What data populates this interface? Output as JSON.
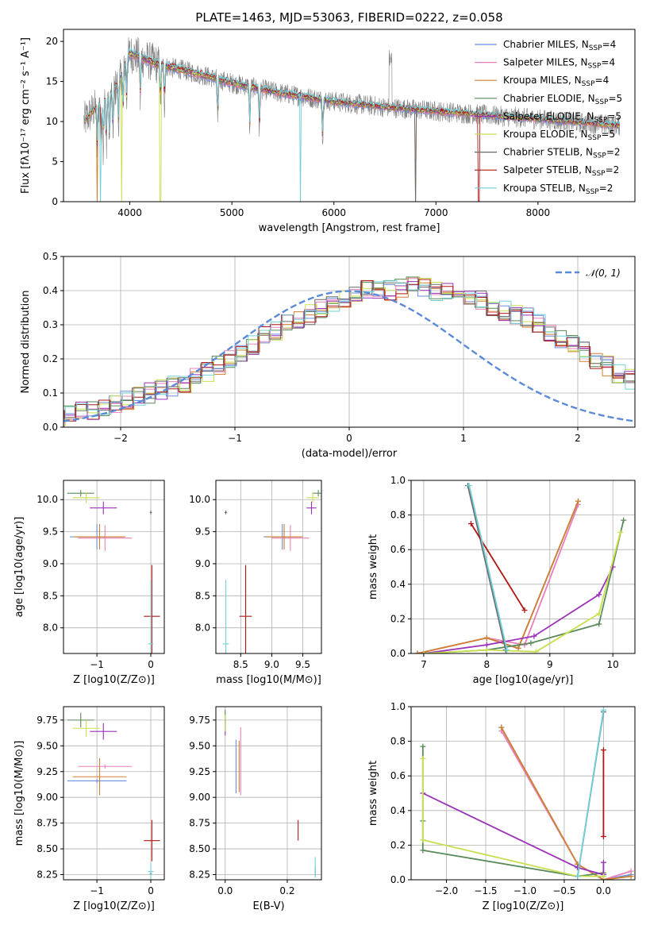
{
  "colors": {
    "Chabrier MILES": "#6a8ee0",
    "Salpeter MILES": "#ea80b8",
    "Kroupa MILES": "#d08030",
    "Chabrier ELODIE": "#5a8a5a",
    "Salpeter ELODIE": "#9a30b8",
    "Kroupa ELODIE": "#c8e050",
    "Chabrier STELIB": "#6a6a6a",
    "Salpeter STELIB": "#b01818",
    "Kroupa STELIB": "#70d0d8",
    "gaussian": "#5a8ad8"
  },
  "chart_data": [
    {
      "id": "spectrum",
      "type": "line",
      "title": "PLATE=1463, MJD=53063, FIBERID=0222, z=0.058",
      "xlabel": "wavelength [Angstrom, rest frame]",
      "ylabel": "Flux [fλ10⁻¹⁷ erg cm⁻² s⁻¹ A⁻¹]",
      "xlim": [
        3350,
        8950
      ],
      "ylim": [
        0,
        21.5
      ],
      "xticks": [
        4000,
        5000,
        6000,
        7000,
        8000
      ],
      "yticks": [
        0,
        5,
        10,
        15,
        20
      ],
      "grid": false,
      "legend_position": "top-right",
      "legend": [
        "Chabrier MILES, N_SSP=4",
        "Salpeter MILES, N_SSP=4",
        "Kroupa MILES, N_SSP=4",
        "Chabrier ELODIE, N_SSP=5",
        "Salpeter ELODIE, N_SSP=5",
        "Kroupa ELODIE, N_SSP=5",
        "Chabrier STELIB, N_SSP=2",
        "Salpeter STELIB, N_SSP=2",
        "Kroupa STELIB, N_SSP=2"
      ],
      "continuum": {
        "x": [
          3550,
          3650,
          3700,
          3800,
          3900,
          3950,
          4000,
          4100,
          4300,
          4500,
          4800,
          5000,
          5500,
          6000,
          6500,
          7000,
          7500,
          8000,
          8500,
          8800
        ],
        "y": [
          10,
          11.5,
          12,
          13,
          15,
          17,
          18.5,
          18,
          17,
          16.5,
          15.5,
          14.8,
          13.5,
          12.5,
          11.8,
          11.3,
          10.8,
          10.3,
          9.8,
          9.5
        ]
      },
      "absorption_lines": [
        3680,
        3720,
        3740,
        3770,
        3800,
        3835,
        3889,
        3934,
        3969,
        4102,
        4300,
        4340,
        4861,
        5175,
        5270,
        5890
      ]
    },
    {
      "id": "residuals",
      "type": "histogram",
      "xlabel": "(data-model)/error",
      "ylabel": "Normed distribution",
      "xlim": [
        -2.5,
        2.5
      ],
      "ylim": [
        0,
        0.5
      ],
      "xticks": [
        -2,
        -1,
        0,
        1,
        2
      ],
      "yticks": [
        0.0,
        0.1,
        0.2,
        0.3,
        0.4,
        0.5
      ],
      "grid": true,
      "legend": [
        "𝒩(0, 1)"
      ],
      "legend_position": "top-right",
      "bin_width": 0.1,
      "density_mean": [
        0.02,
        0.02,
        0.02,
        0.03,
        0.03,
        0.04,
        0.05,
        0.05,
        0.06,
        0.07,
        0.08,
        0.09,
        0.1,
        0.11,
        0.12,
        0.13,
        0.15,
        0.16,
        0.18,
        0.2,
        0.22,
        0.24,
        0.27,
        0.28,
        0.3,
        0.31,
        0.33,
        0.35,
        0.36,
        0.37,
        0.38,
        0.4,
        0.4,
        0.4,
        0.41,
        0.41,
        0.41,
        0.4,
        0.4,
        0.39,
        0.38,
        0.37,
        0.35,
        0.34,
        0.33,
        0.32,
        0.3,
        0.28,
        0.26,
        0.24,
        0.22,
        0.2,
        0.18,
        0.16,
        0.14,
        0.13,
        0.11,
        0.1,
        0.09,
        0.08,
        0.07,
        0.06,
        0.05,
        0.05,
        0.04,
        0.04,
        0.03,
        0.03,
        0.03,
        0.03
      ]
    },
    {
      "id": "age-Z",
      "type": "errorbar",
      "xlabel": "Z [log10(Z/Z⊙)]",
      "ylabel": "age  [log10(age/yr)]",
      "xlim": [
        -1.62,
        0.25
      ],
      "ylim": [
        7.6,
        10.3
      ],
      "xticks": [
        -1,
        0
      ],
      "yticks": [
        8.0,
        8.5,
        9.0,
        9.5,
        10.0
      ],
      "grid": true,
      "points": [
        {
          "model": "Chabrier MILES",
          "x": -1.0,
          "xerr": 0.5,
          "y": 9.42,
          "yerr": 0.2
        },
        {
          "model": "Salpeter MILES",
          "x": -0.85,
          "xerr": 0.5,
          "y": 9.4,
          "yerr": 0.2
        },
        {
          "model": "Kroupa MILES",
          "x": -0.95,
          "xerr": 0.48,
          "y": 9.42,
          "yerr": 0.2
        },
        {
          "model": "Chabrier ELODIE",
          "x": -1.3,
          "xerr": 0.25,
          "y": 10.1,
          "yerr": 0.05
        },
        {
          "model": "Salpeter ELODIE",
          "x": -0.88,
          "xerr": 0.25,
          "y": 9.87,
          "yerr": 0.1
        },
        {
          "model": "Kroupa ELODIE",
          "x": -1.2,
          "xerr": 0.25,
          "y": 10.03,
          "yerr": 0.08
        },
        {
          "model": "Chabrier STELIB",
          "x": 0.0,
          "xerr": 0.02,
          "y": 9.8,
          "yerr": 0.03
        },
        {
          "model": "Salpeter STELIB",
          "x": 0.02,
          "xerr": 0.15,
          "y": 8.18,
          "yerr": 0.8
        },
        {
          "model": "Kroupa STELIB",
          "x": 0.0,
          "xerr": 0.05,
          "y": 7.75,
          "yerr": 1.0
        }
      ]
    },
    {
      "id": "age-mass",
      "type": "errorbar",
      "xlabel": "mass [log10(M/M⊙)]",
      "xlim": [
        8.1,
        9.8
      ],
      "ylim": [
        7.6,
        10.3
      ],
      "xticks": [
        8.5,
        9.0,
        9.5
      ],
      "yticks": [
        8.0,
        8.5,
        9.0,
        9.5,
        10.0
      ],
      "grid": true,
      "points": [
        {
          "model": "Chabrier MILES",
          "x": 9.17,
          "xerr": 0.3,
          "y": 9.42,
          "yerr": 0.2
        },
        {
          "model": "Salpeter MILES",
          "x": 9.3,
          "xerr": 0.3,
          "y": 9.4,
          "yerr": 0.2
        },
        {
          "model": "Kroupa MILES",
          "x": 9.2,
          "xerr": 0.3,
          "y": 9.42,
          "yerr": 0.2
        },
        {
          "model": "Chabrier ELODIE",
          "x": 9.75,
          "xerr": 0.1,
          "y": 10.1,
          "yerr": 0.05
        },
        {
          "model": "Salpeter ELODIE",
          "x": 9.64,
          "xerr": 0.08,
          "y": 9.87,
          "yerr": 0.1
        },
        {
          "model": "Kroupa ELODIE",
          "x": 9.66,
          "xerr": 0.1,
          "y": 10.03,
          "yerr": 0.08
        },
        {
          "model": "Chabrier STELIB",
          "x": 8.26,
          "xerr": 0.02,
          "y": 9.8,
          "yerr": 0.03
        },
        {
          "model": "Salpeter STELIB",
          "x": 8.58,
          "xerr": 0.1,
          "y": 8.18,
          "yerr": 0.8
        },
        {
          "model": "Kroupa STELIB",
          "x": 8.26,
          "xerr": 0.05,
          "y": 7.75,
          "yerr": 1.0
        }
      ]
    },
    {
      "id": "weight-age",
      "type": "line",
      "xlabel": "age  [log10(age/yr)]",
      "ylabel": "mass weight",
      "xlim": [
        6.8,
        10.35
      ],
      "ylim": [
        0,
        1
      ],
      "xticks": [
        7,
        8,
        9,
        10
      ],
      "yticks": [
        0.0,
        0.2,
        0.4,
        0.6,
        0.8,
        1.0
      ],
      "grid": true,
      "series": [
        {
          "model": "Chabrier MILES",
          "x": [
            6.9,
            8.0,
            8.5,
            9.45
          ],
          "y": [
            0.0,
            0.09,
            0.03,
            0.88
          ]
        },
        {
          "model": "Salpeter MILES",
          "x": [
            6.9,
            8.0,
            8.6,
            9.45
          ],
          "y": [
            0.0,
            0.09,
            0.05,
            0.86
          ]
        },
        {
          "model": "Kroupa MILES",
          "x": [
            6.9,
            8.0,
            8.5,
            9.45
          ],
          "y": [
            0.0,
            0.09,
            0.03,
            0.88
          ]
        },
        {
          "model": "Chabrier ELODIE",
          "x": [
            7.0,
            8.0,
            8.7,
            9.78,
            10.17
          ],
          "y": [
            0.0,
            0.02,
            0.06,
            0.17,
            0.77
          ]
        },
        {
          "model": "Salpeter ELODIE",
          "x": [
            7.0,
            8.0,
            8.75,
            9.78,
            10.0
          ],
          "y": [
            0.0,
            0.05,
            0.1,
            0.34,
            0.5
          ]
        },
        {
          "model": "Kroupa ELODIE",
          "x": [
            7.0,
            8.0,
            8.78,
            9.78,
            10.12
          ],
          "y": [
            0.0,
            0.02,
            0.01,
            0.23,
            0.7
          ]
        },
        {
          "model": "Chabrier STELIB",
          "x": [
            7.7,
            8.3
          ],
          "y": [
            0.97,
            0.02
          ]
        },
        {
          "model": "Salpeter STELIB",
          "x": [
            7.75,
            8.6
          ],
          "y": [
            0.75,
            0.25
          ]
        },
        {
          "model": "Kroupa STELIB",
          "x": [
            7.72,
            8.32
          ],
          "y": [
            0.97,
            0.02
          ]
        }
      ]
    },
    {
      "id": "mass-Z",
      "type": "errorbar",
      "xlabel": "Z [log10(Z/Z⊙)]",
      "ylabel": "mass [log10(M/M⊙)]",
      "xlim": [
        -1.62,
        0.25
      ],
      "ylim": [
        8.2,
        9.88
      ],
      "xticks": [
        -1,
        0
      ],
      "yticks": [
        8.25,
        8.5,
        8.75,
        9.0,
        9.25,
        9.5,
        9.75
      ],
      "grid": true,
      "points": [
        {
          "model": "Chabrier MILES",
          "x": -1.0,
          "xerr": 0.55,
          "y": 9.16,
          "yerr": 0.02
        },
        {
          "model": "Salpeter MILES",
          "x": -0.85,
          "xerr": 0.5,
          "y": 9.3,
          "yerr": 0.02
        },
        {
          "model": "Kroupa MILES",
          "x": -0.95,
          "xerr": 0.5,
          "y": 9.2,
          "yerr": 0.18
        },
        {
          "model": "Chabrier ELODIE",
          "x": -1.3,
          "xerr": 0.25,
          "y": 9.75,
          "yerr": 0.07
        },
        {
          "model": "Salpeter ELODIE",
          "x": -0.88,
          "xerr": 0.25,
          "y": 9.64,
          "yerr": 0.08
        },
        {
          "model": "Kroupa ELODIE",
          "x": -1.2,
          "xerr": 0.25,
          "y": 9.67,
          "yerr": 0.08
        },
        {
          "model": "Chabrier STELIB",
          "x": 0.0,
          "xerr": 0.02,
          "y": 8.26,
          "yerr": 0.02
        },
        {
          "model": "Salpeter STELIB",
          "x": 0.02,
          "xerr": 0.15,
          "y": 8.58,
          "yerr": 0.2
        },
        {
          "model": "Kroupa STELIB",
          "x": 0.0,
          "xerr": 0.05,
          "y": 8.28,
          "yerr": 0.08
        }
      ]
    },
    {
      "id": "mass-EBV",
      "type": "errorbar",
      "xlabel": "E(B-V)",
      "xlim": [
        -0.03,
        0.31
      ],
      "ylim": [
        8.2,
        9.88
      ],
      "xticks": [
        0.0,
        0.2
      ],
      "yticks": [
        8.25,
        8.5,
        8.75,
        9.0,
        9.25,
        9.5,
        9.75
      ],
      "grid": true,
      "points": [
        {
          "model": "Chabrier MILES",
          "x": 0.035,
          "y": 9.3,
          "yerr": 0.26
        },
        {
          "model": "Salpeter MILES",
          "x": 0.05,
          "y": 9.35,
          "yerr": 0.33
        },
        {
          "model": "Kroupa MILES",
          "x": 0.045,
          "y": 9.3,
          "yerr": 0.25
        },
        {
          "model": "Chabrier ELODIE",
          "x": 0.0,
          "y": 9.78,
          "yerr": 0.07
        },
        {
          "model": "Salpeter ELODIE",
          "x": 0.0,
          "y": 9.68,
          "yerr": 0.08
        },
        {
          "model": "Kroupa ELODIE",
          "x": 0.0,
          "y": 9.72,
          "yerr": 0.08
        },
        {
          "model": "Chabrier STELIB",
          "x": 0.29,
          "y": 8.28,
          "yerr": 0.04
        },
        {
          "model": "Salpeter STELIB",
          "x": 0.235,
          "y": 8.68,
          "yerr": 0.1
        },
        {
          "model": "Kroupa STELIB",
          "x": 0.29,
          "y": 8.32,
          "yerr": 0.1
        }
      ]
    },
    {
      "id": "weight-Z",
      "type": "line",
      "xlabel": "Z [log10(Z/Z⊙)]",
      "ylabel": "mass weight",
      "xlim": [
        -2.45,
        0.4
      ],
      "ylim": [
        0,
        1
      ],
      "xticks": [
        -2.0,
        -1.5,
        -1.0,
        -0.5,
        0.0
      ],
      "yticks": [
        0.0,
        0.2,
        0.4,
        0.6,
        0.8,
        1.0
      ],
      "grid": true,
      "series": [
        {
          "model": "Chabrier MILES",
          "x": [
            -1.3,
            -0.33,
            0.0,
            0.35
          ],
          "y": [
            0.88,
            0.09,
            0.0,
            0.03
          ]
        },
        {
          "model": "Salpeter MILES",
          "x": [
            -1.3,
            -0.33,
            0.0,
            0.35
          ],
          "y": [
            0.86,
            0.09,
            0.0,
            0.05
          ]
        },
        {
          "model": "Kroupa MILES",
          "x": [
            -1.3,
            -0.33,
            0.0,
            0.35
          ],
          "y": [
            0.88,
            0.09,
            0.0,
            0.02
          ]
        },
        {
          "model": "Chabrier ELODIE",
          "x": [
            -2.3,
            -2.3,
            -2.3,
            -0.33,
            0.0
          ],
          "y": [
            0.77,
            0.34,
            0.17,
            0.02,
            0.04
          ]
        },
        {
          "model": "Salpeter ELODIE",
          "x": [
            -2.3,
            -0.33,
            0.0,
            0.0
          ],
          "y": [
            0.5,
            0.07,
            0.03,
            0.1
          ]
        },
        {
          "model": "Kroupa ELODIE",
          "x": [
            -2.3,
            -2.3,
            -0.33,
            0.0
          ],
          "y": [
            0.7,
            0.23,
            0.02,
            0.02
          ]
        },
        {
          "model": "Chabrier STELIB",
          "x": [
            -0.33,
            0.0
          ],
          "y": [
            0.02,
            0.97
          ]
        },
        {
          "model": "Salpeter STELIB",
          "x": [
            0.0,
            0.0
          ],
          "y": [
            0.25,
            0.75
          ]
        },
        {
          "model": "Kroupa STELIB",
          "x": [
            -0.33,
            0.0
          ],
          "y": [
            0.02,
            0.98
          ]
        }
      ]
    }
  ]
}
